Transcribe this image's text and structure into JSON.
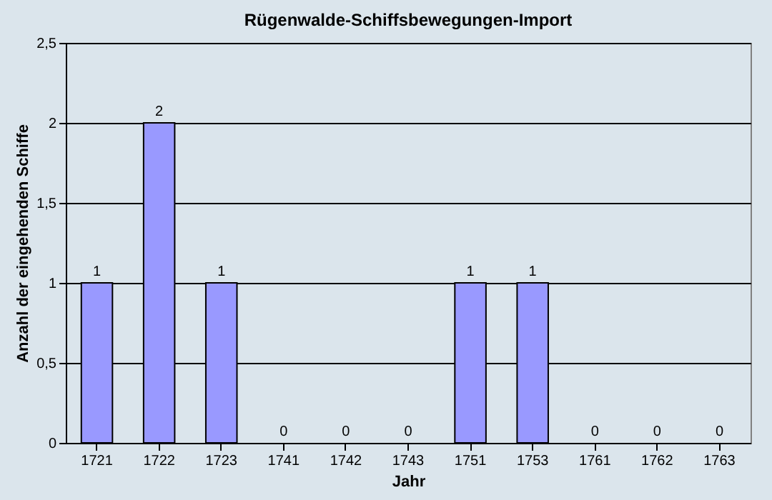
{
  "chart_data": {
    "type": "bar",
    "title": "Rügenwalde-Schiffsbewegungen-Import",
    "xlabel": "Jahr",
    "ylabel": "Anzahl der eingehenden Schiffe",
    "categories": [
      "1721",
      "1722",
      "1723",
      "1741",
      "1742",
      "1743",
      "1751",
      "1753",
      "1761",
      "1762",
      "1763"
    ],
    "values": [
      1,
      2,
      1,
      0,
      0,
      0,
      1,
      1,
      0,
      0,
      0
    ],
    "color": "#9999ff",
    "ylim": [
      0,
      2.5
    ],
    "yticks": [
      0,
      {
        "value": 0.5,
        "label": "0,5"
      },
      1,
      {
        "value": 1.5,
        "label": "1,5"
      },
      2,
      {
        "value": 2.5,
        "label": "2,5"
      }
    ],
    "grid": "y",
    "data_labels": true
  }
}
